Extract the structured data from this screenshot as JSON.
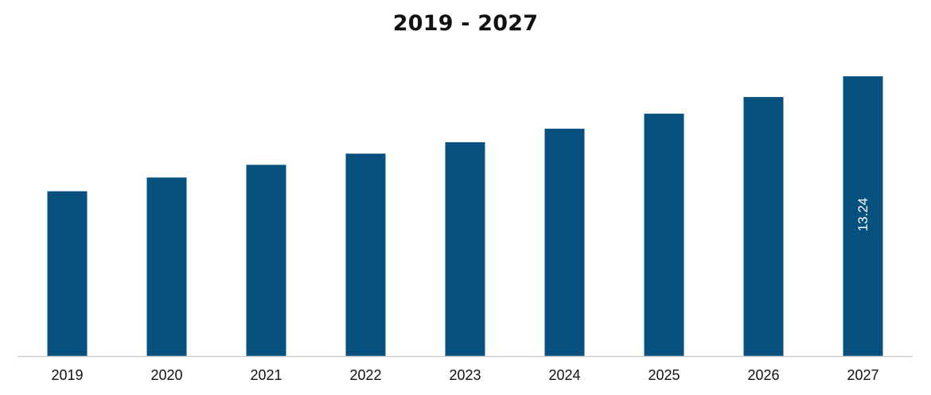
{
  "chart_data": {
    "type": "bar",
    "title": "2019 - 2027",
    "xlabel": "",
    "ylabel": "",
    "categories": [
      "2019",
      "2020",
      "2021",
      "2022",
      "2023",
      "2024",
      "2025",
      "2026",
      "2027"
    ],
    "values": [
      7.8,
      8.45,
      9.05,
      9.58,
      10.12,
      10.76,
      11.47,
      12.26,
      13.24
    ],
    "data_labels": [
      "",
      "",
      "",
      "",
      "",
      "",
      "",
      "",
      "13.24"
    ],
    "ylim": [
      0,
      13.24
    ],
    "grid": false,
    "legend": "none",
    "colors": {
      "bar": "#08507e",
      "axis": "#d0d0d0",
      "value_label": "#ffffff"
    }
  }
}
